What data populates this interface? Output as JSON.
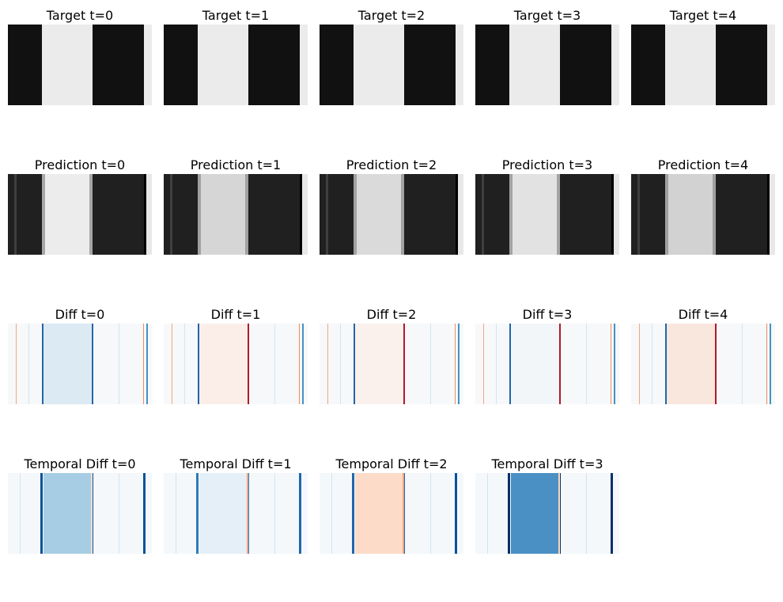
{
  "chart_data": {
    "type": "heatmap",
    "colormaps": {
      "target": "greys",
      "prediction": "greys",
      "diff": "RdBu",
      "temporal_diff": "RdBu"
    },
    "rows": [
      {
        "key": "target",
        "panels": [
          {
            "title": "Target t=0",
            "t": 0
          },
          {
            "title": "Target t=1",
            "t": 1
          },
          {
            "title": "Target t=2",
            "t": 2
          },
          {
            "title": "Target t=3",
            "t": 3
          },
          {
            "title": "Target t=4",
            "t": 4
          }
        ]
      },
      {
        "key": "prediction",
        "panels": [
          {
            "title": "Prediction t=0",
            "t": 0
          },
          {
            "title": "Prediction t=1",
            "t": 1
          },
          {
            "title": "Prediction t=2",
            "t": 2
          },
          {
            "title": "Prediction t=3",
            "t": 3
          },
          {
            "title": "Prediction t=4",
            "t": 4
          }
        ]
      },
      {
        "key": "diff",
        "panels": [
          {
            "title": "Diff t=0",
            "t": 0
          },
          {
            "title": "Diff t=1",
            "t": 1
          },
          {
            "title": "Diff t=2",
            "t": 2
          },
          {
            "title": "Diff t=3",
            "t": 3
          },
          {
            "title": "Diff t=4",
            "t": 4
          }
        ]
      },
      {
        "key": "temporal_diff",
        "panels": [
          {
            "title": "Temporal Diff t=0",
            "t": 0
          },
          {
            "title": "Temporal Diff t=1",
            "t": 1
          },
          {
            "title": "Temporal Diff t=2",
            "t": 2
          },
          {
            "title": "Temporal Diff t=3",
            "t": 3
          }
        ]
      }
    ]
  }
}
